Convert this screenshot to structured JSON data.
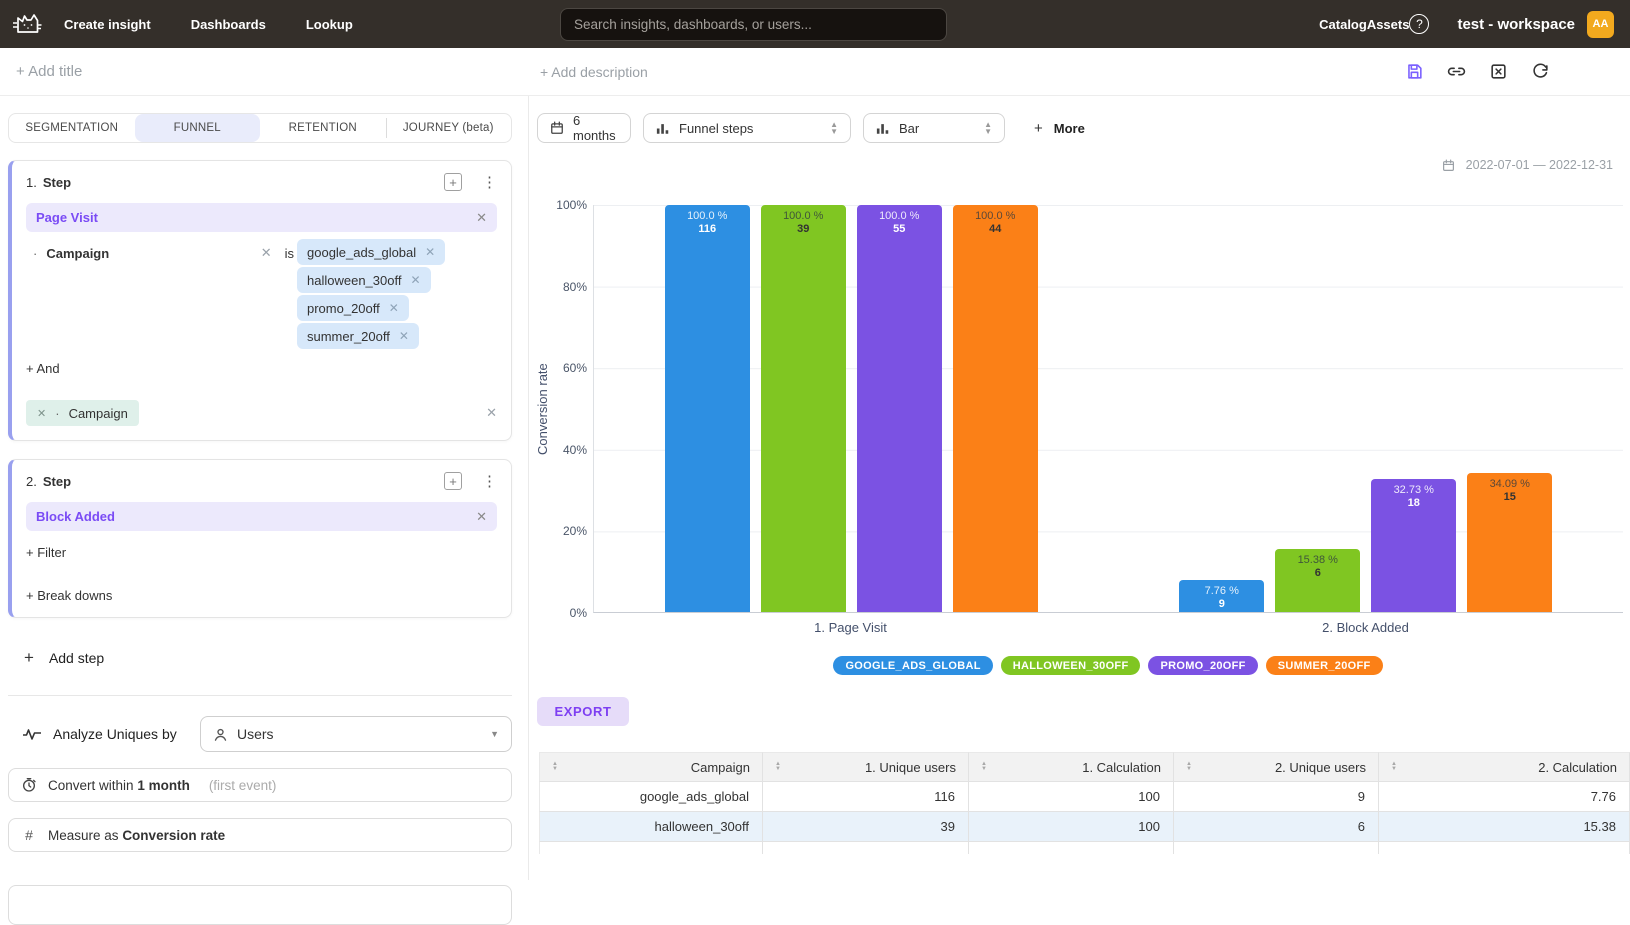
{
  "navbar": {
    "links": [
      "Create insight",
      "Dashboards",
      "Lookup"
    ],
    "search_placeholder": "Search insights, dashboards, or users...",
    "catalog": "Catalog",
    "assets": "Assets",
    "workspace": "test - workspace",
    "avatar": "AA",
    "colors": {
      "bar_bg": "#342F2A",
      "avatar_bg": "#F2A91E"
    }
  },
  "titlebar": {
    "add_title": "+ Add title",
    "add_description": "+ Add description"
  },
  "tabs": {
    "segmentation": "SEGMENTATION",
    "funnel": "FUNNEL",
    "retention": "RETENTION",
    "journey": "JOURNEY (beta)"
  },
  "step1": {
    "index": "1.",
    "title": "Step",
    "event": "Page Visit",
    "filter_name": "Campaign",
    "operator": "is",
    "values": [
      "google_ads_global",
      "halloween_30off",
      "promo_20off",
      "summer_20off"
    ],
    "and_label": "+ And",
    "breakdown_name": "Campaign"
  },
  "step2": {
    "index": "2.",
    "title": "Step",
    "event": "Block Added",
    "filter_label": "+ Filter",
    "breakdowns_label": "+ Break downs"
  },
  "controls_left": {
    "add_step": "Add step",
    "analyze_label": "Analyze Uniques by",
    "analyze_value": "Users",
    "convert_label": "Convert within",
    "convert_value": "1 month",
    "convert_hint": "(first event)",
    "measure_label": "Measure as",
    "measure_value": "Conversion rate"
  },
  "chart_controls": {
    "range": "6 months",
    "view": "Funnel steps",
    "chart_type": "Bar",
    "more": "More",
    "date_range": "2022-07-01 — 2022-12-31"
  },
  "chart_data": {
    "type": "bar",
    "ylabel": "Conversion rate",
    "ylim": [
      0,
      100
    ],
    "yticks": [
      "100%",
      "80%",
      "60%",
      "40%",
      "20%",
      "0%"
    ],
    "categories": [
      "1. Page Visit",
      "2. Block Added"
    ],
    "grid": true,
    "legend_position": "bottom",
    "series": [
      {
        "name": "GOOGLE_ADS_GLOBAL",
        "color": "#2D8FE2",
        "values": [
          100.0,
          7.76
        ],
        "counts": [
          116,
          9
        ],
        "labels": [
          "100.0 %",
          "7.76 %"
        ]
      },
      {
        "name": "HALLOWEEN_30OFF",
        "color": "#80C622",
        "values": [
          100.0,
          15.38
        ],
        "counts": [
          39,
          6
        ],
        "labels": [
          "100.0 %",
          "15.38 %"
        ]
      },
      {
        "name": "PROMO_20OFF",
        "color": "#7B52E3",
        "values": [
          100.0,
          32.73
        ],
        "counts": [
          55,
          18
        ],
        "labels": [
          "100.0 %",
          "32.73 %"
        ]
      },
      {
        "name": "SUMMER_20OFF",
        "color": "#FB8017",
        "values": [
          100.0,
          34.09
        ],
        "counts": [
          44,
          15
        ],
        "labels": [
          "100.0 %",
          "34.09 %"
        ]
      }
    ]
  },
  "export_label": "EXPORT",
  "table": {
    "headers": [
      "Campaign",
      "1. Unique users",
      "1. Calculation",
      "2. Unique users",
      "2. Calculation"
    ],
    "rows": [
      [
        "google_ads_global",
        "116",
        "100",
        "9",
        "7.76"
      ],
      [
        "halloween_30off",
        "39",
        "100",
        "6",
        "15.38"
      ]
    ]
  }
}
